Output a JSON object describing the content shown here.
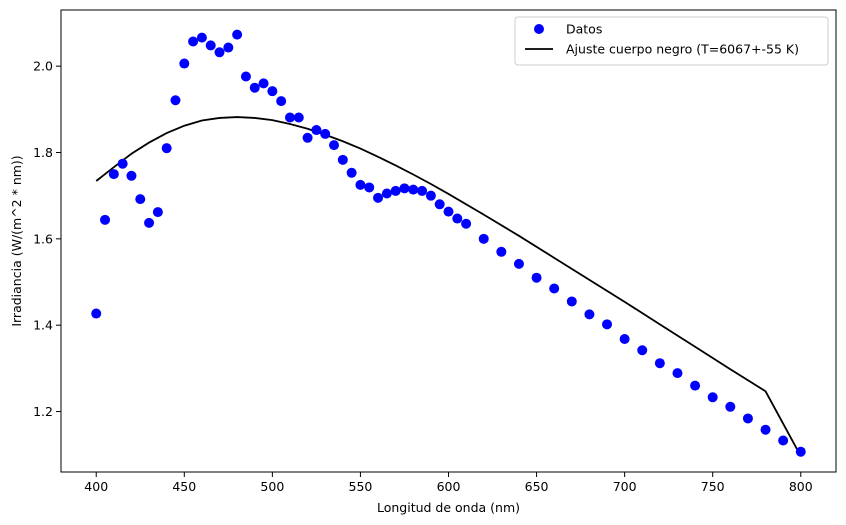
{
  "chart_data": {
    "type": "scatter",
    "xlabel": "Longitud de onda (nm)",
    "ylabel": "Irradiancia (W/(m^2 * nm))",
    "xlim": [
      380,
      820
    ],
    "ylim": [
      1.06,
      2.13
    ],
    "x_ticks": [
      400,
      450,
      500,
      550,
      600,
      650,
      700,
      750,
      800
    ],
    "y_ticks": [
      1.2,
      1.4,
      1.6,
      1.8,
      2.0
    ],
    "x_tick_labels": [
      "400",
      "450",
      "500",
      "550",
      "600",
      "650",
      "700",
      "750",
      "800"
    ],
    "y_tick_labels": [
      "1.2",
      "1.4",
      "1.6",
      "1.8",
      "2.0"
    ],
    "grid": false,
    "legend_position": "top-right",
    "series": [
      {
        "name": "Datos",
        "kind": "scatter",
        "color": "#0000ff",
        "x": [
          400,
          405,
          410,
          415,
          420,
          425,
          430,
          435,
          440,
          445,
          450,
          455,
          460,
          465,
          470,
          475,
          480,
          485,
          490,
          495,
          500,
          505,
          510,
          515,
          520,
          525,
          530,
          535,
          540,
          545,
          550,
          555,
          560,
          565,
          570,
          575,
          580,
          585,
          590,
          595,
          600,
          605,
          610,
          620,
          630,
          640,
          650,
          660,
          670,
          680,
          690,
          700,
          710,
          720,
          730,
          740,
          750,
          760,
          770,
          780,
          790,
          800
        ],
        "y": [
          1.427,
          1.644,
          1.75,
          1.774,
          1.746,
          1.692,
          1.637,
          1.662,
          1.81,
          1.921,
          2.006,
          2.057,
          2.066,
          2.048,
          2.032,
          2.043,
          2.073,
          1.976,
          1.95,
          1.96,
          1.942,
          1.919,
          1.881,
          1.881,
          1.834,
          1.852,
          1.843,
          1.817,
          1.783,
          1.753,
          1.725,
          1.719,
          1.695,
          1.705,
          1.711,
          1.717,
          1.714,
          1.711,
          1.7,
          1.68,
          1.663,
          1.647,
          1.635,
          1.6,
          1.57,
          1.542,
          1.51,
          1.485,
          1.455,
          1.425,
          1.402,
          1.368,
          1.342,
          1.312,
          1.289,
          1.26,
          1.233,
          1.211,
          1.184,
          1.158,
          1.133,
          1.107
        ]
      },
      {
        "name": "Ajuste cuerpo negro (T=6067+-55 K)",
        "kind": "line",
        "color": "#000000",
        "x": [
          400,
          410,
          420,
          430,
          440,
          450,
          460,
          470,
          480,
          490,
          500,
          510,
          520,
          530,
          540,
          550,
          560,
          570,
          580,
          590,
          600,
          620,
          640,
          660,
          680,
          700,
          720,
          740,
          760,
          780,
          800
        ],
        "y": [
          1.734,
          1.766,
          1.797,
          1.823,
          1.845,
          1.862,
          1.874,
          1.88,
          1.882,
          1.88,
          1.875,
          1.866,
          1.855,
          1.841,
          1.826,
          1.809,
          1.79,
          1.77,
          1.749,
          1.727,
          1.704,
          1.656,
          1.607,
          1.556,
          1.505,
          1.454,
          1.402,
          1.35,
          1.298,
          1.247,
          1.097
        ]
      }
    ]
  }
}
